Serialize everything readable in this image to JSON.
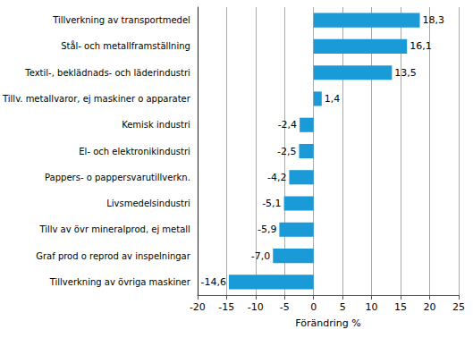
{
  "chart_data": {
    "type": "bar",
    "orientation": "horizontal",
    "categories": [
      "Tillverkning av transportmedel",
      "Stål- och metallframställning",
      "Textil-, beklädnads- och läderindustri",
      "Tillv. metallvaror, ej maskiner o apparater",
      "Kemisk industri",
      "El- och elektronikindustri",
      "Pappers- o pappersvarutillverkn.",
      "Livsmedelsindustri",
      "Tillv av övr mineralprod, ej metall",
      "Graf prod o reprod av inspelningar",
      "Tillverkning av övriga maskiner"
    ],
    "values": [
      18.3,
      16.1,
      13.5,
      1.4,
      -2.4,
      -2.5,
      -4.2,
      -5.1,
      -5.9,
      -7.0,
      -14.6
    ],
    "value_labels": [
      "18,3",
      "16,1",
      "13,5",
      "1,4",
      "-2,4",
      "-2,5",
      "-4,2",
      "-5,1",
      "-5,9",
      "-7,0",
      "-14,6"
    ],
    "data_labels": true,
    "color": "#1a9ad6",
    "x_label": "Förändring %",
    "xlim": [
      -20,
      25
    ],
    "xticks": [
      -20,
      -15,
      -10,
      -5,
      0,
      5,
      10,
      15,
      20,
      25
    ],
    "grid": true
  }
}
